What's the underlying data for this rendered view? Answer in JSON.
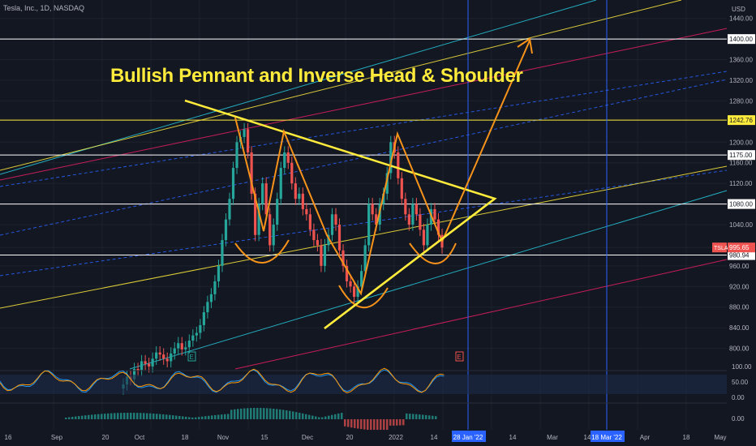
{
  "header": {
    "symbol_line": "Tesla, Inc., 1D, NASDAQ",
    "currency": "USD"
  },
  "annotation": {
    "title": "Bullish Pennant and Inverse Head & Shoulder"
  },
  "theme": {
    "background": "#131722",
    "up": "#26a69a",
    "down": "#ef5350",
    "annotation": "#ffeb3b",
    "pattern": "#f7931a",
    "marker": "#2962ff"
  },
  "chart_data": {
    "type": "candlestick",
    "y_price_range": [
      760,
      1460
    ],
    "price_ticks": [
      "1440.00",
      "1400.00",
      "1360.00",
      "1320.00",
      "1280.00",
      "1242.76",
      "1200.00",
      "1175.00",
      "1160.00",
      "1120.00",
      "1080.00",
      "1040.00",
      "995.65",
      "980.94",
      "960.00",
      "920.00",
      "880.00",
      "840.00",
      "800.00"
    ],
    "x_axis_ticks": [
      "16",
      "Sep",
      "20",
      "Oct",
      "18",
      "Nov",
      "15",
      "Dec",
      "20",
      "2022",
      "14",
      "28 Jan '22",
      "14",
      "Mar",
      "14",
      "18 Mar '22",
      "Apr",
      "18",
      "May"
    ],
    "horizontal_levels": [
      {
        "value": 1400.0,
        "color": "white",
        "label": "1400.00"
      },
      {
        "value": 1242.76,
        "color": "#ffeb3b",
        "label": "1242.76"
      },
      {
        "value": 1175.0,
        "color": "white",
        "label": "1175.00"
      },
      {
        "value": 1080.0,
        "color": "white",
        "label": "1080.00"
      },
      {
        "value": 980.94,
        "color": "white",
        "label": "980.94"
      }
    ],
    "last_price": {
      "symbol": "TSLA",
      "value": "995.65"
    },
    "vertical_markers": [
      "28 Jan '22",
      "18 Mar '22"
    ],
    "earnings_markers": [
      "E",
      "E"
    ],
    "candles_close": [
      730,
      745,
      740,
      760,
      758,
      775,
      770,
      765,
      780,
      792,
      788,
      780,
      775,
      790,
      800,
      810,
      798,
      802,
      815,
      825,
      830,
      845,
      870,
      890,
      905,
      930,
      960,
      1010,
      1050,
      1090,
      1150,
      1200,
      1210,
      1225,
      1180,
      1100,
      1020,
      1080,
      1120,
      1060,
      1000,
      1040,
      1090,
      1150,
      1180,
      1160,
      1120,
      1090,
      1100,
      1070,
      1060,
      1030,
      1010,
      1000,
      960,
      1000,
      1020,
      1060,
      1040,
      990,
      960,
      930,
      920,
      900,
      920,
      950,
      1000,
      1080,
      1060,
      1040,
      1080,
      1100,
      1140,
      1200,
      1180,
      1130,
      1090,
      1060,
      1040,
      1080,
      1060,
      1030,
      1000,
      1040,
      1070,
      1050,
      1020,
      995.65
    ],
    "oscillator": {
      "ticks": [
        "100.00",
        "50.00",
        "0.00"
      ],
      "fast": "#2196f3",
      "slow": "#ff9800"
    },
    "histogram": {
      "ticks": [
        "0.00"
      ]
    }
  }
}
